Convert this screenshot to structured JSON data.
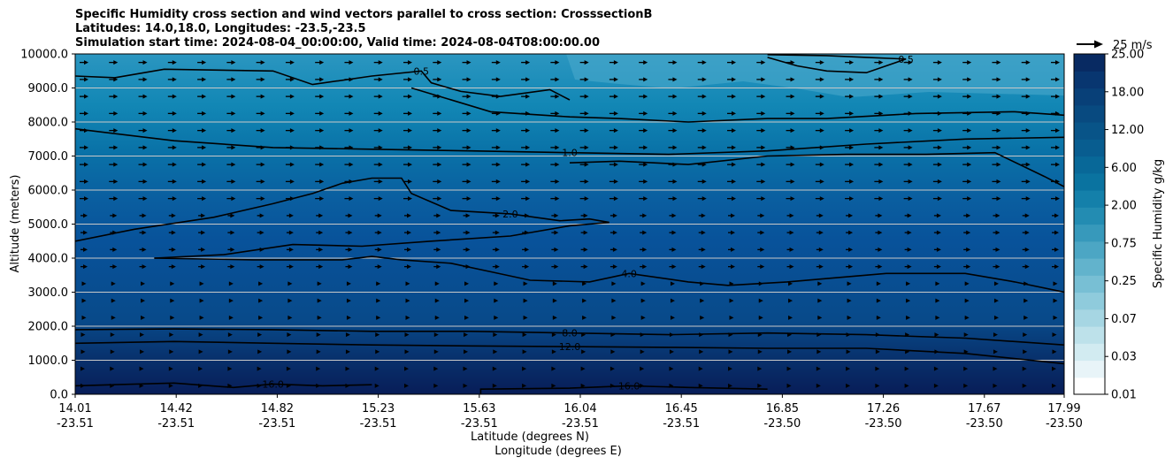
{
  "chart_data": {
    "type": "contour",
    "title_lines": [
      "Specific Humidity cross section and wind vectors parallel to cross section: CrosssectionB",
      "Latitudes: 14.0,18.0, Longitudes: -23.5,-23.5",
      "Simulation start time: 2024-08-04_00:00:00, Valid time: 2024-08-04T08:00:00.00"
    ],
    "ylabel": "Altitude (meters)",
    "xlabel_lat": "Latitude (degrees N)",
    "xlabel_lon": "Longitude (degrees E)",
    "ylim": [
      0,
      10000
    ],
    "y_ticks": [
      "0.0",
      "1000.0",
      "2000.0",
      "3000.0",
      "4000.0",
      "5000.0",
      "6000.0",
      "7000.0",
      "8000.0",
      "9000.0",
      "10000.0"
    ],
    "x_ticks": [
      {
        "lat": "14.01",
        "lon": "-23.51"
      },
      {
        "lat": "14.42",
        "lon": "-23.51"
      },
      {
        "lat": "14.82",
        "lon": "-23.51"
      },
      {
        "lat": "15.23",
        "lon": "-23.51"
      },
      {
        "lat": "15.63",
        "lon": "-23.51"
      },
      {
        "lat": "16.04",
        "lon": "-23.51"
      },
      {
        "lat": "16.45",
        "lon": "-23.51"
      },
      {
        "lat": "16.85",
        "lon": "-23.50"
      },
      {
        "lat": "17.26",
        "lon": "-23.50"
      },
      {
        "lat": "17.67",
        "lon": "-23.50"
      },
      {
        "lat": "17.99",
        "lon": "-23.50"
      }
    ],
    "colorbar": {
      "label": "Specific Humidity g/kg",
      "tick_labels": [
        "0.01",
        "0.03",
        "0.07",
        "0.25",
        "0.75",
        "2.00",
        "6.00",
        "12.00",
        "18.00",
        "25.00"
      ],
      "bands": 20
    },
    "quiver_key": "25 m/s",
    "contours": [
      {
        "level": "0.5",
        "label": "0.5",
        "points": [
          [
            0.0,
            9350
          ],
          [
            0.04,
            9300
          ],
          [
            0.09,
            9550
          ],
          [
            0.2,
            9500
          ],
          [
            0.24,
            9100
          ],
          [
            0.3,
            9350
          ],
          [
            0.35,
            9500
          ],
          [
            0.36,
            9150
          ],
          [
            0.39,
            8900
          ],
          [
            0.43,
            8750
          ],
          [
            0.48,
            8950
          ],
          [
            0.5,
            8650
          ]
        ]
      },
      {
        "level": "0.5b",
        "label": "0.5",
        "points": [
          [
            0.7,
            9900
          ],
          [
            0.73,
            9650
          ],
          [
            0.76,
            9500
          ],
          [
            0.8,
            9450
          ],
          [
            0.84,
            9850
          ],
          [
            0.8,
            9900
          ],
          [
            0.76,
            9950
          ],
          [
            0.7,
            9980
          ]
        ]
      },
      {
        "level": "1.0",
        "label": "1.0",
        "points": [
          [
            0.0,
            7800
          ],
          [
            0.1,
            7450
          ],
          [
            0.2,
            7250
          ],
          [
            0.3,
            7200
          ],
          [
            0.4,
            7150
          ],
          [
            0.5,
            7100
          ],
          [
            0.6,
            7050
          ],
          [
            0.7,
            7150
          ],
          [
            0.8,
            7350
          ],
          [
            0.9,
            7500
          ],
          [
            1.0,
            7550
          ]
        ]
      },
      {
        "level": "1.0b",
        "label": "",
        "points": [
          [
            0.34,
            9000
          ],
          [
            0.42,
            8300
          ],
          [
            0.5,
            8150
          ],
          [
            0.55,
            8100
          ],
          [
            0.62,
            8000
          ],
          [
            0.7,
            8100
          ],
          [
            0.76,
            8100
          ],
          [
            0.85,
            8250
          ],
          [
            0.95,
            8300
          ],
          [
            1.0,
            8200
          ]
        ]
      },
      {
        "level": "2.0",
        "label": "2.0",
        "points": [
          [
            0.0,
            4500
          ],
          [
            0.06,
            4850
          ],
          [
            0.14,
            5200
          ],
          [
            0.2,
            5600
          ],
          [
            0.24,
            5900
          ],
          [
            0.27,
            6200
          ],
          [
            0.3,
            6350
          ],
          [
            0.33,
            6350
          ],
          [
            0.34,
            5900
          ],
          [
            0.38,
            5400
          ],
          [
            0.44,
            5300
          ],
          [
            0.49,
            5100
          ],
          [
            0.52,
            5150
          ],
          [
            0.54,
            5050
          ],
          [
            0.5,
            4950
          ],
          [
            0.44,
            4650
          ],
          [
            0.36,
            4500
          ],
          [
            0.29,
            4350
          ],
          [
            0.22,
            4400
          ],
          [
            0.15,
            4100
          ],
          [
            0.08,
            4000
          ]
        ]
      },
      {
        "level": "2.0b",
        "label": "",
        "points": [
          [
            0.5,
            6800
          ],
          [
            0.55,
            6850
          ],
          [
            0.62,
            6750
          ],
          [
            0.7,
            7000
          ],
          [
            0.78,
            7050
          ],
          [
            0.86,
            7050
          ],
          [
            0.93,
            7100
          ],
          [
            0.98,
            6400
          ],
          [
            1.0,
            6100
          ]
        ]
      },
      {
        "level": "4.0",
        "label": "4.0",
        "points": [
          [
            0.08,
            4000
          ],
          [
            0.18,
            3950
          ],
          [
            0.27,
            3950
          ],
          [
            0.3,
            4050
          ],
          [
            0.33,
            3950
          ],
          [
            0.38,
            3850
          ],
          [
            0.42,
            3600
          ],
          [
            0.46,
            3350
          ],
          [
            0.52,
            3300
          ],
          [
            0.56,
            3550
          ],
          [
            0.62,
            3300
          ],
          [
            0.66,
            3200
          ],
          [
            0.72,
            3300
          ],
          [
            0.76,
            3400
          ],
          [
            0.82,
            3550
          ],
          [
            0.9,
            3550
          ],
          [
            0.95,
            3300
          ],
          [
            1.0,
            3000
          ]
        ]
      },
      {
        "level": "8.0",
        "label": "8.0",
        "points": [
          [
            0.0,
            1900
          ],
          [
            0.1,
            1920
          ],
          [
            0.2,
            1900
          ],
          [
            0.3,
            1850
          ],
          [
            0.4,
            1850
          ],
          [
            0.5,
            1800
          ],
          [
            0.6,
            1750
          ],
          [
            0.7,
            1800
          ],
          [
            0.8,
            1750
          ],
          [
            0.9,
            1650
          ],
          [
            1.0,
            1450
          ]
        ]
      },
      {
        "level": "12.0",
        "label": "12.0",
        "points": [
          [
            0.0,
            1500
          ],
          [
            0.1,
            1550
          ],
          [
            0.2,
            1500
          ],
          [
            0.3,
            1450
          ],
          [
            0.4,
            1420
          ],
          [
            0.5,
            1400
          ],
          [
            0.6,
            1380
          ],
          [
            0.7,
            1350
          ],
          [
            0.8,
            1350
          ],
          [
            0.9,
            1200
          ],
          [
            1.0,
            900
          ]
        ]
      },
      {
        "level": "16.0",
        "label": "16.0",
        "points": [
          [
            0.0,
            250
          ],
          [
            0.1,
            330
          ],
          [
            0.16,
            200
          ],
          [
            0.2,
            300
          ],
          [
            0.25,
            250
          ],
          [
            0.3,
            280
          ]
        ]
      },
      {
        "level": "16.0b",
        "label": "16.0",
        "points": [
          [
            0.41,
            0
          ],
          [
            0.41,
            150
          ],
          [
            0.5,
            180
          ],
          [
            0.56,
            250
          ],
          [
            0.62,
            200
          ],
          [
            0.7,
            150
          ]
        ]
      }
    ]
  }
}
